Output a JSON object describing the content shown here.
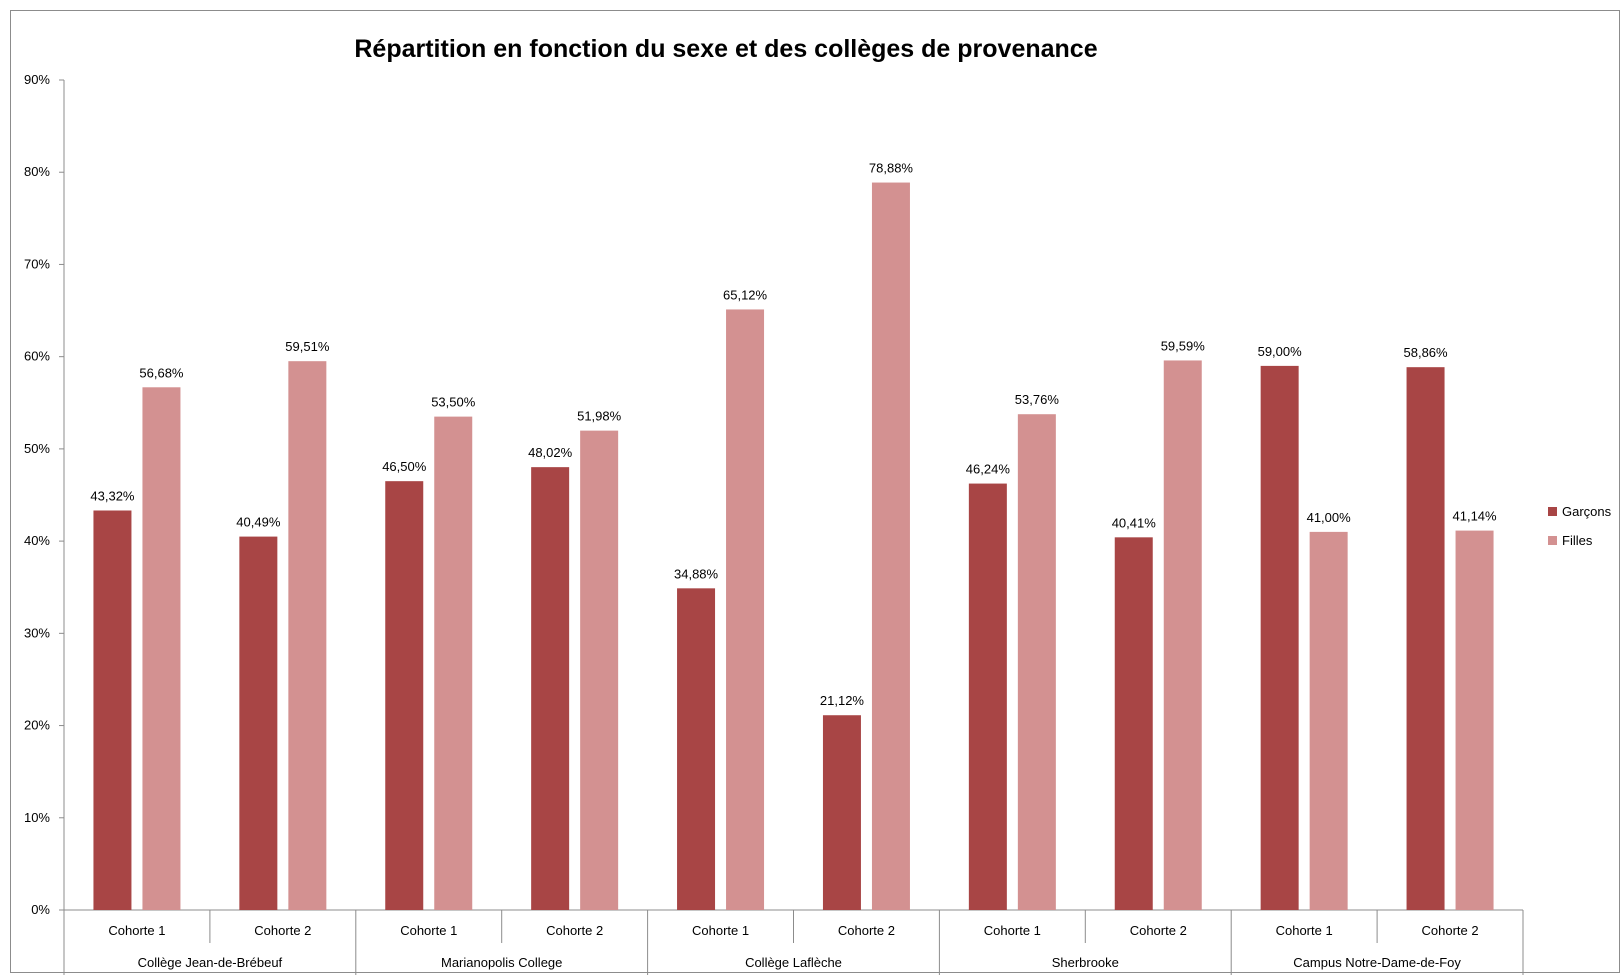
{
  "chart_data": {
    "type": "bar",
    "title": "Répartition en fonction du sexe et des collèges de provenance",
    "xlabel": "",
    "ylabel": "",
    "ylim": [
      0,
      90
    ],
    "yticks": [
      "0%",
      "10%",
      "20%",
      "30%",
      "40%",
      "50%",
      "60%",
      "70%",
      "80%",
      "90%"
    ],
    "groups": [
      "Collège Jean-de-Brébeuf",
      "Marianopolis College",
      "Collège Laflèche",
      "Sherbrooke",
      "Campus Notre-Dame-de-Foy"
    ],
    "categories": [
      "Cohorte 1",
      "Cohorte 2",
      "Cohorte 1",
      "Cohorte 2",
      "Cohorte 1",
      "Cohorte 2",
      "Cohorte 1",
      "Cohorte 2",
      "Cohorte 1",
      "Cohorte 2"
    ],
    "series": [
      {
        "name": "Garçons",
        "color": "#a84545",
        "values": [
          43.32,
          40.49,
          46.5,
          48.02,
          34.88,
          21.12,
          46.24,
          40.41,
          59.0,
          58.86
        ],
        "labels": [
          "43,32%",
          "40,49%",
          "46,50%",
          "48,02%",
          "34,88%",
          "21,12%",
          "46,24%",
          "40,41%",
          "59,00%",
          "58,86%"
        ]
      },
      {
        "name": "Filles",
        "color": "#d39191",
        "values": [
          56.68,
          59.51,
          53.5,
          51.98,
          65.12,
          78.88,
          53.76,
          59.59,
          41.0,
          41.14
        ],
        "labels": [
          "56,68%",
          "59,51%",
          "53,50%",
          "51,98%",
          "65,12%",
          "78,88%",
          "53,76%",
          "59,59%",
          "41,00%",
          "41,14%"
        ]
      }
    ],
    "grid": false,
    "legend_position": "right"
  }
}
